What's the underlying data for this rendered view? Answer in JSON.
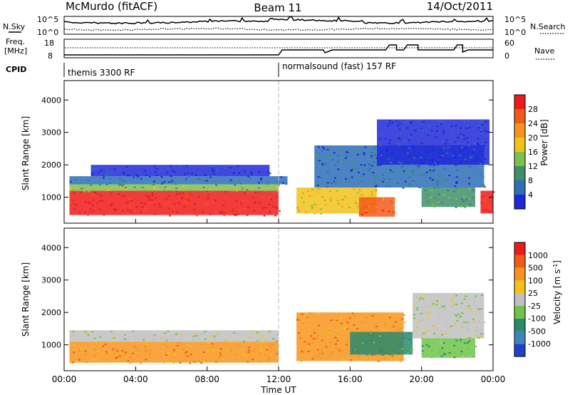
{
  "header": {
    "station": "McMurdo (fitACF)",
    "beam": "Beam 11",
    "date": "14/Oct/2011"
  },
  "noise_panel": {
    "left_label": "N.Sky",
    "right_label": "N.Search",
    "left_ticks": [
      "10^5",
      "10^0"
    ],
    "right_ticks": [
      "10^5",
      "10^0"
    ]
  },
  "freq_panel": {
    "left_label_1": "Freq.",
    "left_label_2": "[MHz]",
    "right_label": "Nave",
    "left_ticks": [
      "18",
      "8"
    ],
    "right_ticks": [
      "60",
      "0"
    ]
  },
  "cpid": {
    "label": "CPID",
    "segments": [
      {
        "name": "themis 3300 RF",
        "start_hour": 0
      },
      {
        "name": "normalsound (fast) 157 RF",
        "start_hour": 12
      }
    ]
  },
  "x_axis": {
    "label": "Time UT",
    "ticks": [
      "00:00",
      "04:00",
      "08:00",
      "12:00",
      "16:00",
      "20:00",
      "00:00"
    ]
  },
  "chart_data": [
    {
      "type": "heatmap",
      "title": "",
      "xlabel": "Time UT",
      "ylabel": "Slant Range [km]",
      "xlim": [
        0,
        24
      ],
      "ylim": [
        200,
        4600
      ],
      "yticks": [
        "1000",
        "2000",
        "3000",
        "4000"
      ],
      "colorbar_label": "Power [dB]",
      "colorbar_ticks": [
        "4",
        "8",
        "12",
        "16",
        "20",
        "24",
        "28"
      ],
      "colors": [
        "#1f28d8",
        "#2d6fb8",
        "#3f8f6a",
        "#7ec04a",
        "#f2c21b",
        "#f7941d",
        "#f25a1a",
        "#ee1a1a"
      ],
      "regions": [
        {
          "t0": 0.3,
          "t1": 12.0,
          "r0": 450,
          "r1": 1200,
          "level": 7
        },
        {
          "t0": 0.3,
          "t1": 12.0,
          "r0": 1200,
          "r1": 1400,
          "level": 3
        },
        {
          "t0": 0.3,
          "t1": 12.5,
          "r0": 1400,
          "r1": 1650,
          "level": 1
        },
        {
          "t0": 1.5,
          "t1": 11.5,
          "r0": 1650,
          "r1": 2000,
          "level": 0
        },
        {
          "t0": 13.0,
          "t1": 17.5,
          "r0": 500,
          "r1": 1300,
          "level": 4
        },
        {
          "t0": 16.5,
          "t1": 18.5,
          "r0": 400,
          "r1": 1000,
          "level": 6
        },
        {
          "t0": 14.0,
          "t1": 23.5,
          "r0": 1300,
          "r1": 2600,
          "level": 1
        },
        {
          "t0": 17.5,
          "t1": 23.8,
          "r0": 2000,
          "r1": 3400,
          "level": 0
        },
        {
          "t0": 20.0,
          "t1": 23.0,
          "r0": 700,
          "r1": 1300,
          "level": 2
        },
        {
          "t0": 23.3,
          "t1": 24.0,
          "r0": 500,
          "r1": 1200,
          "level": 7
        }
      ]
    },
    {
      "type": "heatmap",
      "title": "",
      "xlabel": "Time UT",
      "ylabel": "Slant Range [km]",
      "xlim": [
        0,
        24
      ],
      "ylim": [
        200,
        4600
      ],
      "yticks": [
        "1000",
        "2000",
        "3000",
        "4000"
      ],
      "colorbar_label": "Velocity [m s^-1]",
      "colorbar_ticks": [
        "1000",
        "500",
        "100",
        "25",
        "-25",
        "-100",
        "-500",
        "-1000"
      ],
      "colors": [
        "#2040c8",
        "#3f86b8",
        "#2a8a6a",
        "#6fc44a",
        "#bfbfbf",
        "#f2c21b",
        "#f7941d",
        "#f25a1a",
        "#ee1a1a"
      ],
      "regions": [
        {
          "t0": 0.3,
          "t1": 12.0,
          "r0": 450,
          "r1": 1100,
          "level": 6
        },
        {
          "t0": 0.3,
          "t1": 12.0,
          "r0": 1100,
          "r1": 1450,
          "level": 4
        },
        {
          "t0": 13.0,
          "t1": 19.0,
          "r0": 500,
          "r1": 2000,
          "level": 6
        },
        {
          "t0": 16.0,
          "t1": 19.5,
          "r0": 700,
          "r1": 1400,
          "level": 2
        },
        {
          "t0": 19.5,
          "t1": 23.5,
          "r0": 1200,
          "r1": 2600,
          "level": 4
        },
        {
          "t0": 20.0,
          "t1": 23.0,
          "r0": 600,
          "r1": 1200,
          "level": 3
        }
      ]
    }
  ]
}
